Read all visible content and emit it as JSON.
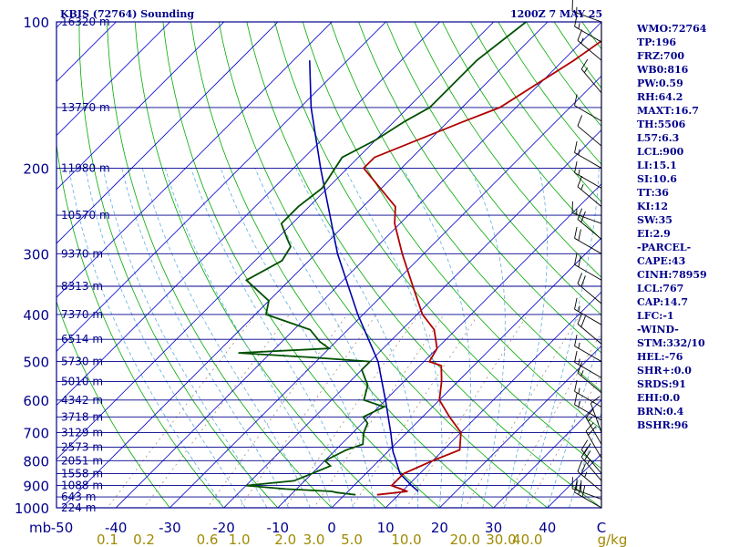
{
  "header": {
    "station": "KBIS (72764) Sounding",
    "time": "1200Z  7 MAY 25"
  },
  "indices": [
    "WMO:72764",
    "TP:196",
    "FRZ:700",
    "WB0:816",
    "PW:0.59",
    "RH:64.2",
    "MAXT:16.7",
    "TH:5506",
    "L57:6.3",
    "LCL:900",
    "LI:15.1",
    "SI:10.6",
    "TT:36",
    "KI:12",
    "SW:35",
    "EI:2.9",
    "-PARCEL-",
    "CAPE:43",
    "CINH:78959",
    "LCL:767",
    "CAP:14.7",
    "LFC:-1",
    "-WIND-",
    "STM:332/10",
    "HEL:-76",
    "SHR+:0.0",
    "SRDS:91",
    "EHI:0.0",
    "BRN:0.4",
    "BSHR:96"
  ],
  "colors": {
    "frame": "#00008b",
    "isobar": "#00008b",
    "isotherm": "#0000cd",
    "dry_adiabat": "#00aa00",
    "moist_adiabat": "#5faedf",
    "mixing_ratio": "#a08060",
    "temperature": "#b00000",
    "dewpoint": "#005000",
    "parcel": "#0000aa",
    "wind": "#000000",
    "axis_text": "#00008b",
    "mixing_text": "#a08a00"
  },
  "chart_data": {
    "type": "line",
    "diagram": "skew-T log-P",
    "x_unit": "C",
    "y_unit": "mb",
    "xlim": [
      -50,
      50
    ],
    "ylim": [
      1000,
      100
    ],
    "pressure_labels": [
      "100",
      "200",
      "300",
      "400",
      "500",
      "600",
      "700",
      "800",
      "900",
      "1000"
    ],
    "pressure_axis_label": "mb",
    "temperature_ticks": [
      "-50",
      "-40",
      "-30",
      "-20",
      "-10",
      "0",
      "10",
      "20",
      "30",
      "40",
      "C"
    ],
    "mixing_ratio_labels": [
      {
        "text": "0.1",
        "g": 0.1
      },
      {
        "text": "0.2",
        "g": 0.2
      },
      {
        "text": "0.6",
        "g": 0.6
      },
      {
        "text": "1.0",
        "g": 1.0
      },
      {
        "text": "2.0",
        "g": 2.0
      },
      {
        "text": "3.0",
        "g": 3.0
      },
      {
        "text": "5.0",
        "g": 5.0
      },
      {
        "text": "10.0",
        "g": 10.0
      },
      {
        "text": "20.0",
        "g": 20.0
      },
      {
        "text": "30.0",
        "g": 30.0
      },
      {
        "text": "40.0",
        "g": 40.0
      }
    ],
    "mixing_ratio_unit": "g/kg",
    "height_labels": [
      {
        "p": 100,
        "text": "16320 m"
      },
      {
        "p": 150,
        "text": "13770 m"
      },
      {
        "p": 200,
        "text": "11980 m"
      },
      {
        "p": 250,
        "text": "10570 m"
      },
      {
        "p": 300,
        "text": "9370 m"
      },
      {
        "p": 350,
        "text": "8313 m"
      },
      {
        "p": 400,
        "text": "7370 m"
      },
      {
        "p": 450,
        "text": "6514 m"
      },
      {
        "p": 500,
        "text": "5730 m"
      },
      {
        "p": 550,
        "text": "5010 m"
      },
      {
        "p": 600,
        "text": "4342 m"
      },
      {
        "p": 650,
        "text": "3718 m"
      },
      {
        "p": 700,
        "text": "3129 m"
      },
      {
        "p": 750,
        "text": "2573 m"
      },
      {
        "p": 800,
        "text": "2051 m"
      },
      {
        "p": 850,
        "text": "1558 m"
      },
      {
        "p": 900,
        "text": "1088 m"
      },
      {
        "p": 950,
        "text": "643 m"
      },
      {
        "p": 1000,
        "text": "224 m"
      }
    ],
    "series": [
      {
        "name": "temperature",
        "points": [
          [
            940,
            6
          ],
          [
            925,
            11
          ],
          [
            900,
            7
          ],
          [
            850,
            7
          ],
          [
            800,
            10
          ],
          [
            760,
            13
          ],
          [
            700,
            10
          ],
          [
            650,
            5
          ],
          [
            600,
            0
          ],
          [
            550,
            -3
          ],
          [
            510,
            -6
          ],
          [
            500,
            -9
          ],
          [
            470,
            -10
          ],
          [
            430,
            -14
          ],
          [
            400,
            -19
          ],
          [
            350,
            -26
          ],
          [
            300,
            -34
          ],
          [
            260,
            -41
          ],
          [
            240,
            -44
          ],
          [
            200,
            -57
          ],
          [
            190,
            -57
          ],
          [
            160,
            -47
          ],
          [
            150,
            -43
          ],
          [
            120,
            -38
          ],
          [
            100,
            -35
          ]
        ]
      },
      {
        "name": "dewpoint",
        "points": [
          [
            940,
            2
          ],
          [
            930,
            -2
          ],
          [
            925,
            -3
          ],
          [
            915,
            -12
          ],
          [
            900,
            -20
          ],
          [
            880,
            -12
          ],
          [
            850,
            -10
          ],
          [
            820,
            -8
          ],
          [
            800,
            -10
          ],
          [
            760,
            -8
          ],
          [
            740,
            -6
          ],
          [
            720,
            -7
          ],
          [
            700,
            -8
          ],
          [
            670,
            -9
          ],
          [
            650,
            -11
          ],
          [
            620,
            -9
          ],
          [
            600,
            -14
          ],
          [
            560,
            -16
          ],
          [
            520,
            -20
          ],
          [
            500,
            -20
          ],
          [
            490,
            -32
          ],
          [
            480,
            -46
          ],
          [
            470,
            -30
          ],
          [
            455,
            -33
          ],
          [
            430,
            -37
          ],
          [
            400,
            -48
          ],
          [
            375,
            -50
          ],
          [
            340,
            -58
          ],
          [
            310,
            -55
          ],
          [
            290,
            -56
          ],
          [
            280,
            -58
          ],
          [
            260,
            -62
          ],
          [
            240,
            -62
          ],
          [
            220,
            -61
          ],
          [
            190,
            -63
          ],
          [
            175,
            -60
          ],
          [
            160,
            -58
          ],
          [
            150,
            -56
          ],
          [
            120,
            -56
          ],
          [
            100,
            -54
          ]
        ]
      },
      {
        "name": "parcel",
        "points": [
          [
            925,
            13
          ],
          [
            900,
            10.7
          ],
          [
            850,
            6.3
          ],
          [
            800,
            3.2
          ],
          [
            767,
            1.0
          ],
          [
            700,
            -3
          ],
          [
            600,
            -10
          ],
          [
            500,
            -18.5
          ],
          [
            400,
            -31
          ],
          [
            300,
            -46
          ],
          [
            200,
            -65
          ],
          [
            150,
            -78
          ],
          [
            120,
            -87
          ]
        ]
      }
    ]
  },
  "winds": [
    {
      "p": 1000,
      "dir": 300,
      "spd": 30
    },
    {
      "p": 960,
      "dir": 290,
      "spd": 30
    },
    {
      "p": 925,
      "dir": 310,
      "spd": 25
    },
    {
      "p": 880,
      "dir": 320,
      "spd": 25
    },
    {
      "p": 850,
      "dir": 320,
      "spd": 20
    },
    {
      "p": 790,
      "dir": 330,
      "spd": 20
    },
    {
      "p": 740,
      "dir": 330,
      "spd": 15
    },
    {
      "p": 700,
      "dir": 340,
      "spd": 10
    },
    {
      "p": 660,
      "dir": 300,
      "spd": 15
    },
    {
      "p": 620,
      "dir": 300,
      "spd": 15
    },
    {
      "p": 580,
      "dir": 310,
      "spd": 15
    },
    {
      "p": 540,
      "dir": 300,
      "spd": 15
    },
    {
      "p": 500,
      "dir": 300,
      "spd": 15
    },
    {
      "p": 460,
      "dir": 310,
      "spd": 20
    },
    {
      "p": 420,
      "dir": 300,
      "spd": 15
    },
    {
      "p": 380,
      "dir": 310,
      "spd": 20
    },
    {
      "p": 340,
      "dir": 300,
      "spd": 20
    },
    {
      "p": 300,
      "dir": 300,
      "spd": 20
    },
    {
      "p": 280,
      "dir": 310,
      "spd": 20
    },
    {
      "p": 260,
      "dir": 290,
      "spd": 15
    },
    {
      "p": 240,
      "dir": 310,
      "spd": 15
    },
    {
      "p": 220,
      "dir": 300,
      "spd": 15
    },
    {
      "p": 200,
      "dir": 300,
      "spd": 15
    },
    {
      "p": 180,
      "dir": 310,
      "spd": 10
    },
    {
      "p": 160,
      "dir": 300,
      "spd": 10
    },
    {
      "p": 140,
      "dir": 320,
      "spd": 15
    },
    {
      "p": 120,
      "dir": 310,
      "spd": 15
    },
    {
      "p": 110,
      "dir": 300,
      "spd": 15
    },
    {
      "p": 100,
      "dir": 290,
      "spd": 15
    }
  ]
}
